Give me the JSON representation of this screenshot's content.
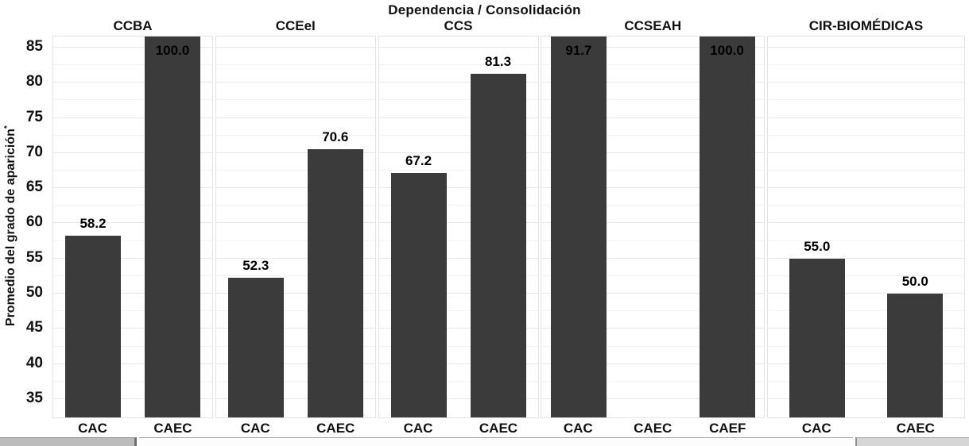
{
  "header": {
    "title": "Dependencia / Consolidación"
  },
  "y_axis": {
    "label": "Promedio del grado de aparición",
    "label_superscript": "*"
  },
  "chart_data": {
    "type": "bar",
    "title": "Dependencia / Consolidación",
    "xlabel": "",
    "ylabel": "Promedio del grado de aparición*",
    "yticks": [
      35,
      40,
      45,
      50,
      55,
      60,
      65,
      70,
      75,
      80,
      85
    ],
    "ylim": [
      32.4,
      86.57
    ],
    "grid": true,
    "legend": "none",
    "bar_color": "#3b3b3b",
    "facets": [
      {
        "label": "CCBA",
        "categories": [
          "CAC",
          "CAEC"
        ],
        "values": [
          58.2,
          100.0
        ],
        "value_labels": [
          "58.2",
          "100.0"
        ]
      },
      {
        "label": "CCEeI",
        "categories": [
          "CAC",
          "CAEC"
        ],
        "values": [
          52.3,
          70.6
        ],
        "value_labels": [
          "52.3",
          "70.6"
        ]
      },
      {
        "label": "CCS",
        "categories": [
          "CAC",
          "CAEC"
        ],
        "values": [
          67.2,
          81.3
        ],
        "value_labels": [
          "67.2",
          "81.3"
        ]
      },
      {
        "label": "CCSEAH",
        "categories": [
          "CAC",
          "CAEC",
          "CAEF"
        ],
        "values": [
          91.7,
          null,
          100.0
        ],
        "value_labels": [
          "91.7",
          null,
          "100.0"
        ]
      },
      {
        "label": "CIR-BIOMÉDICAS",
        "categories": [
          "CAC",
          "CAEC"
        ],
        "values": [
          55.0,
          50.0
        ],
        "value_labels": [
          "55.0",
          "50.0"
        ]
      }
    ]
  }
}
